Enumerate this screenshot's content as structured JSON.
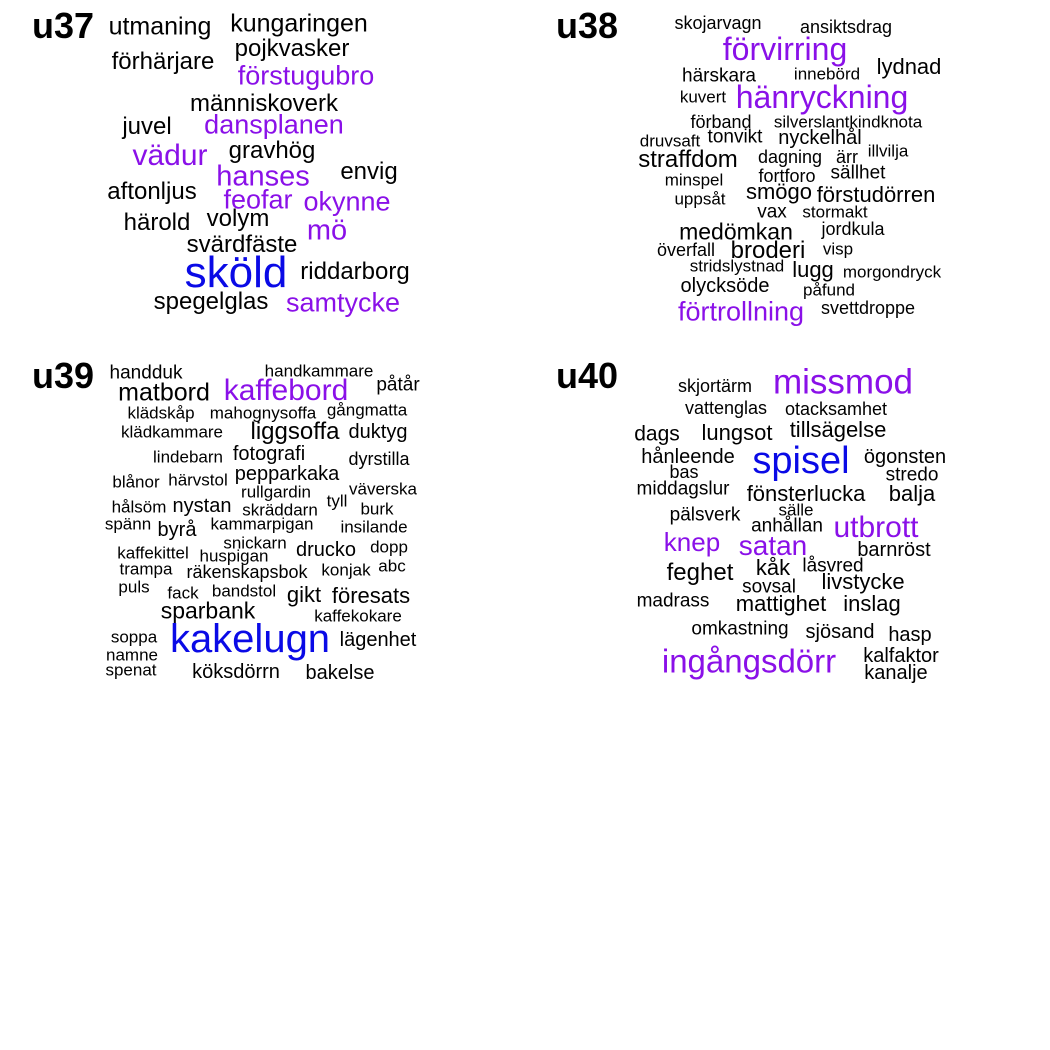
{
  "colors": {
    "black": "#000000",
    "purple": "#8a10e8",
    "blue": "#0a0ae6"
  },
  "panels": [
    {
      "title": "u37",
      "words": [
        {
          "text": "utmaning",
          "color": "black",
          "size": 1
        },
        {
          "text": "kungaringen",
          "color": "black",
          "size": 1
        },
        {
          "text": "pojkvasker",
          "color": "black",
          "size": 1
        },
        {
          "text": "förhärjare",
          "color": "black",
          "size": 1
        },
        {
          "text": "förstugubro",
          "color": "purple",
          "size": 2
        },
        {
          "text": "människoverk",
          "color": "black",
          "size": 1
        },
        {
          "text": "juvel",
          "color": "black",
          "size": 1
        },
        {
          "text": "dansplanen",
          "color": "purple",
          "size": 2
        },
        {
          "text": "vädur",
          "color": "purple",
          "size": 2
        },
        {
          "text": "gravhög",
          "color": "black",
          "size": 1
        },
        {
          "text": "hanses",
          "color": "purple",
          "size": 2
        },
        {
          "text": "envig",
          "color": "black",
          "size": 1
        },
        {
          "text": "aftonljus",
          "color": "black",
          "size": 1
        },
        {
          "text": "feofar",
          "color": "purple",
          "size": 2
        },
        {
          "text": "okynne",
          "color": "purple",
          "size": 2
        },
        {
          "text": "härold",
          "color": "black",
          "size": 1
        },
        {
          "text": "volym",
          "color": "black",
          "size": 1
        },
        {
          "text": "mö",
          "color": "purple",
          "size": 2
        },
        {
          "text": "svärdfäste",
          "color": "black",
          "size": 1
        },
        {
          "text": "sköld",
          "color": "blue",
          "size": 3
        },
        {
          "text": "riddarborg",
          "color": "black",
          "size": 1
        },
        {
          "text": "spegelglas",
          "color": "black",
          "size": 1
        },
        {
          "text": "samtycke",
          "color": "purple",
          "size": 2
        }
      ]
    },
    {
      "title": "u38",
      "words": [
        {
          "text": "skojarvagn",
          "color": "black",
          "size": 1
        },
        {
          "text": "ansiktsdrag",
          "color": "black",
          "size": 1
        },
        {
          "text": "förvirring",
          "color": "purple",
          "size": 2
        },
        {
          "text": "härskara",
          "color": "black",
          "size": 1
        },
        {
          "text": "innebörd",
          "color": "black",
          "size": 1
        },
        {
          "text": "lydnad",
          "color": "black",
          "size": 1
        },
        {
          "text": "kuvert",
          "color": "black",
          "size": 1
        },
        {
          "text": "hänryckning",
          "color": "purple",
          "size": 2
        },
        {
          "text": "förband",
          "color": "black",
          "size": 1
        },
        {
          "text": "silverslantkindknota",
          "color": "black",
          "size": 1
        },
        {
          "text": "druvsaft",
          "color": "black",
          "size": 1
        },
        {
          "text": "tonvikt",
          "color": "black",
          "size": 1
        },
        {
          "text": "nyckelhål",
          "color": "black",
          "size": 1
        },
        {
          "text": "illvilja",
          "color": "black",
          "size": 1
        },
        {
          "text": "straffdom",
          "color": "black",
          "size": 1
        },
        {
          "text": "dagning",
          "color": "black",
          "size": 1
        },
        {
          "text": "ärr",
          "color": "black",
          "size": 1
        },
        {
          "text": "minspel",
          "color": "black",
          "size": 1
        },
        {
          "text": "fortforo",
          "color": "black",
          "size": 1
        },
        {
          "text": "sällhet",
          "color": "black",
          "size": 1
        },
        {
          "text": "uppsåt",
          "color": "black",
          "size": 1
        },
        {
          "text": "smögo",
          "color": "black",
          "size": 1
        },
        {
          "text": "förstudörren",
          "color": "black",
          "size": 1
        },
        {
          "text": "vax",
          "color": "black",
          "size": 1
        },
        {
          "text": "stormakt",
          "color": "black",
          "size": 1
        },
        {
          "text": "medömkan",
          "color": "black",
          "size": 1
        },
        {
          "text": "jordkula",
          "color": "black",
          "size": 1
        },
        {
          "text": "överfall",
          "color": "black",
          "size": 1
        },
        {
          "text": "broderi",
          "color": "black",
          "size": 1
        },
        {
          "text": "visp",
          "color": "black",
          "size": 1
        },
        {
          "text": "stridslystnad",
          "color": "black",
          "size": 1
        },
        {
          "text": "lugg",
          "color": "black",
          "size": 1
        },
        {
          "text": "morgondryck",
          "color": "black",
          "size": 1
        },
        {
          "text": "olycksöde",
          "color": "black",
          "size": 1
        },
        {
          "text": "påfund",
          "color": "black",
          "size": 1
        },
        {
          "text": "förtrollning",
          "color": "purple",
          "size": 2
        },
        {
          "text": "svettdroppe",
          "color": "black",
          "size": 1
        }
      ]
    },
    {
      "title": "u39",
      "words": [
        {
          "text": "handduk",
          "color": "black",
          "size": 1
        },
        {
          "text": "handkammare",
          "color": "black",
          "size": 1
        },
        {
          "text": "matbord",
          "color": "black",
          "size": 1
        },
        {
          "text": "kaffebord",
          "color": "purple",
          "size": 2
        },
        {
          "text": "påtår",
          "color": "black",
          "size": 1
        },
        {
          "text": "klädskåp",
          "color": "black",
          "size": 1
        },
        {
          "text": "mahognysoffa",
          "color": "black",
          "size": 1
        },
        {
          "text": "gångmatta",
          "color": "black",
          "size": 1
        },
        {
          "text": "klädkammare",
          "color": "black",
          "size": 1
        },
        {
          "text": "liggsoffa",
          "color": "black",
          "size": 1
        },
        {
          "text": "duktyg",
          "color": "black",
          "size": 1
        },
        {
          "text": "lindebarn",
          "color": "black",
          "size": 1
        },
        {
          "text": "fotografi",
          "color": "black",
          "size": 1
        },
        {
          "text": "dyrstilla",
          "color": "black",
          "size": 1
        },
        {
          "text": "blånor",
          "color": "black",
          "size": 1
        },
        {
          "text": "härvstol",
          "color": "black",
          "size": 1
        },
        {
          "text": "pepparkaka",
          "color": "black",
          "size": 1
        },
        {
          "text": "rullgardin",
          "color": "black",
          "size": 1
        },
        {
          "text": "väverska",
          "color": "black",
          "size": 1
        },
        {
          "text": "hålsöm",
          "color": "black",
          "size": 1
        },
        {
          "text": "nystan",
          "color": "black",
          "size": 1
        },
        {
          "text": "tyll",
          "color": "black",
          "size": 1
        },
        {
          "text": "skräddarn",
          "color": "black",
          "size": 1
        },
        {
          "text": "burk",
          "color": "black",
          "size": 1
        },
        {
          "text": "spänn",
          "color": "black",
          "size": 1
        },
        {
          "text": "byrå",
          "color": "black",
          "size": 1
        },
        {
          "text": "kammarpigan",
          "color": "black",
          "size": 1
        },
        {
          "text": "insilande",
          "color": "black",
          "size": 1
        },
        {
          "text": "snickarn",
          "color": "black",
          "size": 1
        },
        {
          "text": "kaffekittel",
          "color": "black",
          "size": 1
        },
        {
          "text": "huspigan",
          "color": "black",
          "size": 1
        },
        {
          "text": "drucko",
          "color": "black",
          "size": 1
        },
        {
          "text": "dopp",
          "color": "black",
          "size": 1
        },
        {
          "text": "trampa",
          "color": "black",
          "size": 1
        },
        {
          "text": "räkenskapsbok",
          "color": "black",
          "size": 1
        },
        {
          "text": "konjak",
          "color": "black",
          "size": 1
        },
        {
          "text": "abc",
          "color": "black",
          "size": 1
        },
        {
          "text": "puls",
          "color": "black",
          "size": 1
        },
        {
          "text": "fack",
          "color": "black",
          "size": 1
        },
        {
          "text": "bandstol",
          "color": "black",
          "size": 1
        },
        {
          "text": "gikt",
          "color": "black",
          "size": 1
        },
        {
          "text": "föresats",
          "color": "black",
          "size": 1
        },
        {
          "text": "sparbank",
          "color": "black",
          "size": 1
        },
        {
          "text": "kaffekokare",
          "color": "black",
          "size": 1
        },
        {
          "text": "soppa",
          "color": "black",
          "size": 1
        },
        {
          "text": "kakelugn",
          "color": "blue",
          "size": 3
        },
        {
          "text": "lägenhet",
          "color": "black",
          "size": 1
        },
        {
          "text": "namne",
          "color": "black",
          "size": 1
        },
        {
          "text": "spenat",
          "color": "black",
          "size": 1
        },
        {
          "text": "köksdörrn",
          "color": "black",
          "size": 1
        },
        {
          "text": "bakelse",
          "color": "black",
          "size": 1
        }
      ]
    },
    {
      "title": "u40",
      "words": [
        {
          "text": "skjortärm",
          "color": "black",
          "size": 1
        },
        {
          "text": "missmod",
          "color": "purple",
          "size": 2
        },
        {
          "text": "vattenglas",
          "color": "black",
          "size": 1
        },
        {
          "text": "otacksamhet",
          "color": "black",
          "size": 1
        },
        {
          "text": "dags",
          "color": "black",
          "size": 1
        },
        {
          "text": "lungsot",
          "color": "black",
          "size": 1
        },
        {
          "text": "tillsägelse",
          "color": "black",
          "size": 1
        },
        {
          "text": "hånleende",
          "color": "black",
          "size": 1
        },
        {
          "text": "spisel",
          "color": "blue",
          "size": 3
        },
        {
          "text": "ögonsten",
          "color": "black",
          "size": 1
        },
        {
          "text": "bas",
          "color": "black",
          "size": 1
        },
        {
          "text": "stredo",
          "color": "black",
          "size": 1
        },
        {
          "text": "middagslur",
          "color": "black",
          "size": 1
        },
        {
          "text": "fönsterlucka",
          "color": "black",
          "size": 1
        },
        {
          "text": "balja",
          "color": "black",
          "size": 1
        },
        {
          "text": "sälle",
          "color": "black",
          "size": 1
        },
        {
          "text": "pälsverk",
          "color": "black",
          "size": 1
        },
        {
          "text": "anhållan",
          "color": "black",
          "size": 1
        },
        {
          "text": "utbrott",
          "color": "purple",
          "size": 2
        },
        {
          "text": "knep",
          "color": "purple",
          "size": 2
        },
        {
          "text": "satan",
          "color": "purple",
          "size": 2
        },
        {
          "text": "barnröst",
          "color": "black",
          "size": 1
        },
        {
          "text": "kåk",
          "color": "black",
          "size": 1
        },
        {
          "text": "låsvred",
          "color": "black",
          "size": 1
        },
        {
          "text": "feghet",
          "color": "black",
          "size": 1
        },
        {
          "text": "livstycke",
          "color": "black",
          "size": 1
        },
        {
          "text": "sovsal",
          "color": "black",
          "size": 1
        },
        {
          "text": "madrass",
          "color": "black",
          "size": 1
        },
        {
          "text": "mattighet",
          "color": "black",
          "size": 1
        },
        {
          "text": "inslag",
          "color": "black",
          "size": 1
        },
        {
          "text": "omkastning",
          "color": "black",
          "size": 1
        },
        {
          "text": "sjösand",
          "color": "black",
          "size": 1
        },
        {
          "text": "hasp",
          "color": "black",
          "size": 1
        },
        {
          "text": "ingångsdörr",
          "color": "purple",
          "size": 2
        },
        {
          "text": "kalfaktor",
          "color": "black",
          "size": 1
        },
        {
          "text": "kanalje",
          "color": "black",
          "size": 1
        }
      ]
    }
  ]
}
